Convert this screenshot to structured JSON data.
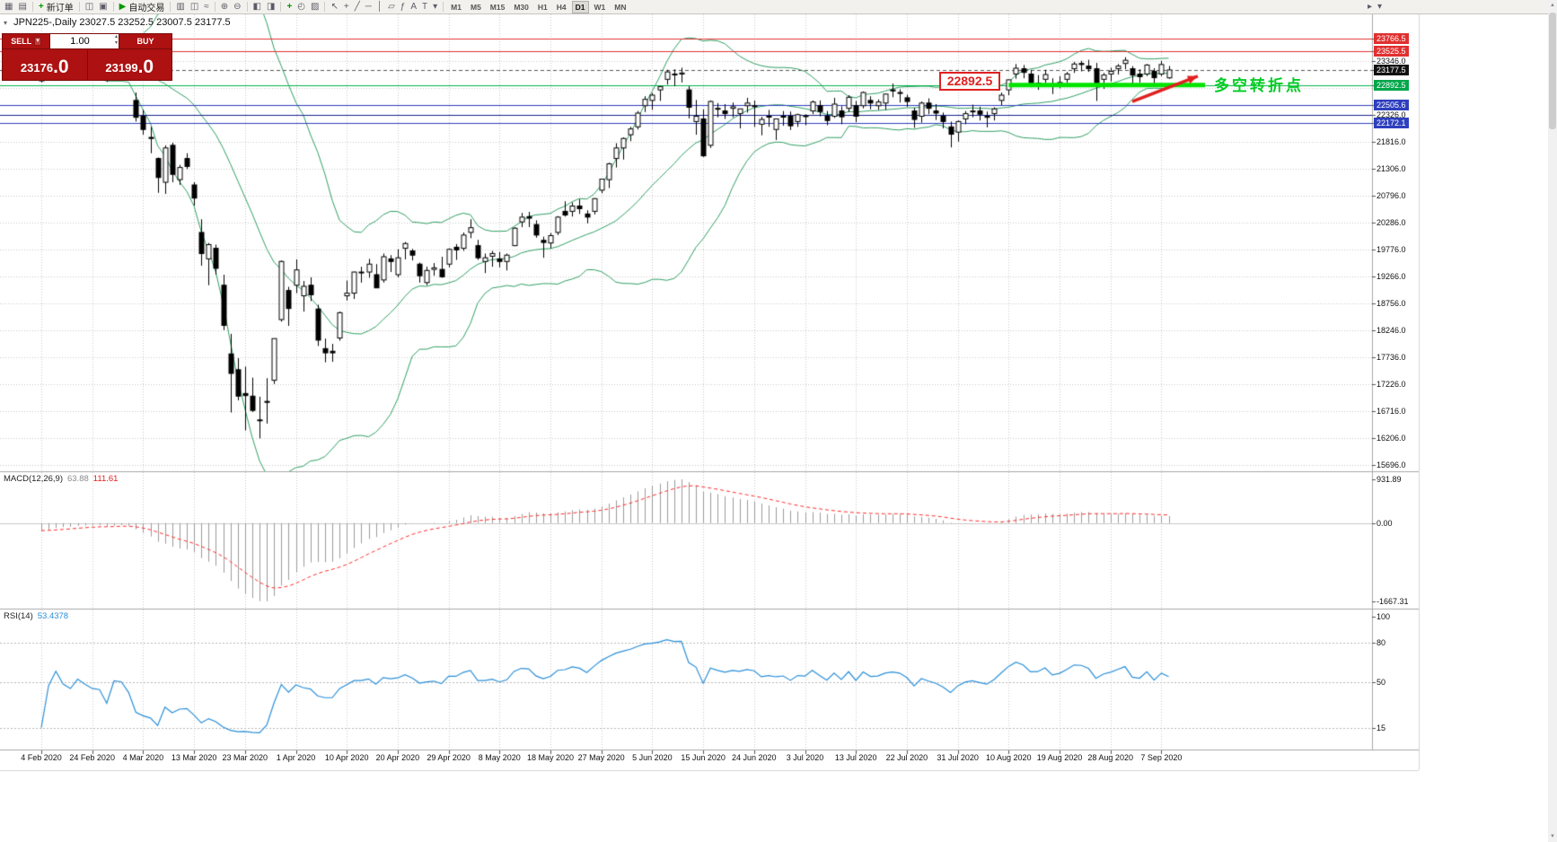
{
  "icons": {
    "caret_down": "▾",
    "caret_up": "▴",
    "collapse_arrow": "▾",
    "scroll_up": "▲",
    "scroll_down": "▼"
  },
  "toolbar": {
    "items": [
      {
        "name": "new-chart",
        "glyph": "▦"
      },
      {
        "name": "profiles",
        "glyph": "▤"
      },
      {
        "sep": true
      },
      {
        "name": "new-order",
        "glyph": "+",
        "color": "#009900",
        "bold": true,
        "label": "新订单"
      },
      {
        "sep": true
      },
      {
        "name": "market-watch",
        "glyph": "◫"
      },
      {
        "name": "navigator",
        "glyph": "▣"
      },
      {
        "sep": true
      },
      {
        "name": "auto-trading",
        "glyph": "▶",
        "color": "#009900",
        "label": "自动交易"
      },
      {
        "sep": true
      },
      {
        "name": "bar-chart",
        "glyph": "▥"
      },
      {
        "name": "candlestick-chart",
        "glyph": "◫"
      },
      {
        "name": "line-chart",
        "glyph": "≈"
      },
      {
        "sep": true
      },
      {
        "name": "zoom-in",
        "glyph": "⊕"
      },
      {
        "name": "zoom-out",
        "glyph": "⊖"
      },
      {
        "sep": true
      },
      {
        "name": "tile-windows",
        "glyph": "◧"
      },
      {
        "name": "cascade-windows",
        "glyph": "◨"
      },
      {
        "sep": true
      },
      {
        "name": "add-indicator",
        "glyph": "+",
        "color": "#009900",
        "bold": true
      },
      {
        "name": "periods",
        "glyph": "◴"
      },
      {
        "name": "templates",
        "glyph": "▨"
      },
      {
        "sep": true
      },
      {
        "name": "cursor",
        "glyph": "↖"
      },
      {
        "name": "crosshair",
        "glyph": "+"
      },
      {
        "name": "trendline",
        "glyph": "╱"
      },
      {
        "name": "horizontal-line",
        "glyph": "─"
      },
      {
        "name": "vertical-line",
        "glyph": "│"
      },
      {
        "name": "equidistant-channel",
        "glyph": "▱"
      },
      {
        "name": "fibonacci",
        "glyph": "ƒ"
      },
      {
        "name": "text-label",
        "glyph": "A"
      },
      {
        "name": "arrows-tool",
        "glyph": "T"
      },
      {
        "name": "shapes",
        "glyph": "▾"
      },
      {
        "sep": true
      }
    ],
    "timeframes": [
      "M1",
      "M5",
      "M15",
      "M30",
      "H1",
      "H4",
      "D1",
      "W1",
      "MN"
    ],
    "active_timeframe": "D1",
    "overflow_items": [
      {
        "name": "toolbar-more",
        "glyph": "▸"
      },
      {
        "name": "toolbar-customize",
        "glyph": "▾"
      }
    ]
  },
  "chart_header": {
    "symbol": "JPN225-",
    "period": "Daily",
    "open": "23027.5",
    "high": "23252.5",
    "low": "23007.5",
    "close": "23177.5",
    "info_line": "JPN225-,Daily  23027.5 23252.5 23007.5 23177.5"
  },
  "trade_panel": {
    "sell_label": "SELL",
    "buy_label": "BUY",
    "volume_value": "1.00",
    "sell_price_main": "23176",
    "sell_price_pips": ".0",
    "buy_price_main": "23199",
    "buy_price_pips": ".0"
  },
  "annotations": {
    "price_callout": "22892.5",
    "turning_point_label": "多空转折点"
  },
  "price_axis": {
    "gridline_labels": [
      "23346.0",
      "22326.0",
      "21816.0",
      "21306.0",
      "20796.0",
      "20286.0",
      "19776.0",
      "19266.0",
      "18756.0",
      "18246.0",
      "17736.0",
      "17226.0",
      "16716.0",
      "16206.0",
      "15696.0"
    ],
    "tags": [
      {
        "value": "23766.5",
        "type": "red"
      },
      {
        "value": "23525.5",
        "type": "red"
      },
      {
        "value": "23177.5",
        "type": "current"
      },
      {
        "value": "22892.5",
        "type": "green"
      },
      {
        "value": "22505.6",
        "type": "blue"
      },
      {
        "value": "22172.1",
        "type": "blue"
      }
    ]
  },
  "macd_panel": {
    "label": "MACD(12,26,9)",
    "value_main": "63.88",
    "value_signal": "111.61",
    "axis_labels": [
      "931.89",
      "0.00",
      "-1667.31"
    ]
  },
  "rsi_panel": {
    "label": "RSI(14)",
    "value": "53.4378",
    "levels": [
      "100",
      "80",
      "50",
      "15"
    ]
  },
  "date_axis": [
    "4 Feb 2020",
    "24 Feb 2020",
    "4 Mar 2020",
    "13 Mar 2020",
    "23 Mar 2020",
    "1 Apr 2020",
    "10 Apr 2020",
    "20 Apr 2020",
    "29 Apr 2020",
    "8 May 2020",
    "18 May 2020",
    "27 May 2020",
    "5 Jun 2020",
    "15 Jun 2020",
    "24 Jun 2020",
    "3 Jul 2020",
    "13 Jul 2020",
    "22 Jul 2020",
    "31 Jul 2020",
    "10 Aug 2020",
    "19 Aug 2020",
    "28 Aug 2020",
    "7 Sep 2020"
  ],
  "chart_data": {
    "type": "candlestick",
    "symbol": "JPN225-",
    "period": "Daily",
    "title": "JPN225- Daily with Bollinger Bands, MACD(12,26,9), RSI(14)",
    "y_axis": {
      "min": 15576,
      "max": 24230,
      "grid_step": 510
    },
    "macd_axis": {
      "max": 931.89,
      "min": -1667.31
    },
    "rsi_axis": {
      "max": 100,
      "min": 0,
      "level_values": [
        80,
        50,
        15
      ]
    },
    "indicators": {
      "bollinger": {
        "period": 20,
        "deviation": 2
      },
      "macd": {
        "fast": 12,
        "slow": 26,
        "signal": 9
      },
      "rsi": {
        "period": 14
      }
    },
    "horizontal_lines": [
      {
        "price": 23766.5,
        "color": "red"
      },
      {
        "price": 23525.5,
        "color": "red"
      },
      {
        "price": 23177.5,
        "color": "current"
      },
      {
        "price": 22892.5,
        "color": "green"
      },
      {
        "price": 22505.6,
        "color": "blue"
      },
      {
        "price": 22326.0,
        "color": "navy"
      },
      {
        "price": 22172.1,
        "color": "blue"
      }
    ],
    "support_segment": {
      "price": 22892.5,
      "x_start_index": 133,
      "x_end_index": 160
    },
    "trend_arrow": {
      "from_index": 150,
      "from_price": 22580,
      "to_index": 159,
      "to_price": 23060
    },
    "ohlc": [
      [
        22970,
        23090,
        22940,
        23080
      ],
      [
        23100,
        23390,
        23080,
        23370
      ],
      [
        23430,
        23590,
        23370,
        23560
      ],
      [
        23500,
        23550,
        23300,
        23390
      ],
      [
        23350,
        23430,
        23240,
        23320
      ],
      [
        23420,
        23480,
        23350,
        23460
      ],
      [
        23480,
        23520,
        23300,
        23380
      ],
      [
        23380,
        23420,
        23230,
        23310
      ],
      [
        23320,
        23420,
        23200,
        23290
      ],
      [
        23250,
        23280,
        22950,
        23000
      ],
      [
        23050,
        23420,
        23020,
        23400
      ],
      [
        23440,
        23520,
        23280,
        23380
      ],
      [
        23350,
        23390,
        23050,
        23120
      ],
      [
        22600,
        22750,
        22200,
        22280
      ],
      [
        22300,
        22420,
        21950,
        22050
      ],
      [
        21900,
        22100,
        21600,
        21880
      ],
      [
        21500,
        21520,
        20850,
        21140
      ],
      [
        21050,
        21750,
        20830,
        21700
      ],
      [
        21750,
        21800,
        21050,
        21200
      ],
      [
        21100,
        21380,
        21000,
        21330
      ],
      [
        21500,
        21600,
        21300,
        21350
      ],
      [
        21000,
        21050,
        20610,
        20750
      ],
      [
        20100,
        20350,
        19470,
        19700
      ],
      [
        19600,
        19900,
        19100,
        19870
      ],
      [
        19800,
        19870,
        19300,
        19420
      ],
      [
        19100,
        19300,
        18250,
        18340
      ],
      [
        17800,
        18180,
        16690,
        17430
      ],
      [
        17500,
        17720,
        16920,
        17000
      ],
      [
        17050,
        17560,
        16350,
        17010
      ],
      [
        17000,
        17350,
        16700,
        16730
      ],
      [
        16550,
        16990,
        16200,
        16550
      ],
      [
        16900,
        17340,
        16480,
        16890
      ],
      [
        17300,
        18090,
        17230,
        18090
      ],
      [
        18450,
        19570,
        18410,
        19550
      ],
      [
        19000,
        19070,
        18330,
        18660
      ],
      [
        19100,
        19590,
        18950,
        19390
      ],
      [
        18900,
        19180,
        18600,
        19080
      ],
      [
        19100,
        19250,
        18800,
        18920
      ],
      [
        18650,
        18730,
        17950,
        18060
      ],
      [
        17900,
        18090,
        17640,
        17820
      ],
      [
        17850,
        17990,
        17650,
        17820
      ],
      [
        18100,
        18600,
        18050,
        18580
      ],
      [
        18900,
        19190,
        18810,
        18950
      ],
      [
        18950,
        19360,
        18840,
        19350
      ],
      [
        19350,
        19450,
        19150,
        19350
      ],
      [
        19350,
        19600,
        19240,
        19500
      ],
      [
        19300,
        19500,
        19050,
        19050
      ],
      [
        19200,
        19700,
        19150,
        19640
      ],
      [
        19600,
        19670,
        19350,
        19550
      ],
      [
        19300,
        19780,
        19250,
        19620
      ],
      [
        19800,
        19920,
        19590,
        19890
      ],
      [
        19750,
        19790,
        19570,
        19670
      ],
      [
        19500,
        19530,
        19150,
        19280
      ],
      [
        19150,
        19450,
        19100,
        19380
      ],
      [
        19400,
        19520,
        19280,
        19430
      ],
      [
        19400,
        19640,
        19240,
        19260
      ],
      [
        19500,
        19800,
        19440,
        19780
      ],
      [
        19820,
        19880,
        19580,
        19770
      ],
      [
        19800,
        20100,
        19750,
        20050
      ],
      [
        20100,
        20350,
        19990,
        20190
      ],
      [
        19850,
        19960,
        19580,
        19620
      ],
      [
        19550,
        19700,
        19330,
        19620
      ],
      [
        19650,
        19750,
        19450,
        19700
      ],
      [
        19600,
        19730,
        19440,
        19550
      ],
      [
        19550,
        19700,
        19380,
        19670
      ],
      [
        19850,
        20200,
        19840,
        20180
      ],
      [
        20300,
        20470,
        20200,
        20390
      ],
      [
        20400,
        20490,
        20200,
        20370
      ],
      [
        20250,
        20330,
        20000,
        20050
      ],
      [
        19950,
        20020,
        19620,
        19910
      ],
      [
        19900,
        20090,
        19800,
        20040
      ],
      [
        20100,
        20410,
        20050,
        20390
      ],
      [
        20500,
        20690,
        20400,
        20430
      ],
      [
        20500,
        20670,
        20400,
        20600
      ],
      [
        20600,
        20730,
        20450,
        20550
      ],
      [
        20450,
        20520,
        20270,
        20390
      ],
      [
        20500,
        20750,
        20440,
        20740
      ],
      [
        20900,
        21110,
        20840,
        21110
      ],
      [
        21100,
        21420,
        20940,
        21400
      ],
      [
        21500,
        21790,
        21330,
        21700
      ],
      [
        21700,
        21900,
        21480,
        21880
      ],
      [
        21950,
        22100,
        21830,
        22060
      ],
      [
        22100,
        22400,
        22050,
        22360
      ],
      [
        22500,
        22680,
        22380,
        22620
      ],
      [
        22600,
        22740,
        22420,
        22700
      ],
      [
        22800,
        22870,
        22590,
        22860
      ],
      [
        23000,
        23180,
        22900,
        23140
      ],
      [
        23100,
        23190,
        22870,
        23090
      ],
      [
        23100,
        23220,
        22940,
        23120
      ],
      [
        22800,
        22870,
        22260,
        22470
      ],
      [
        22200,
        22610,
        21950,
        22300
      ],
      [
        22250,
        22430,
        21530,
        21550
      ],
      [
        21750,
        22600,
        21700,
        22580
      ],
      [
        22450,
        22550,
        22280,
        22450
      ],
      [
        22400,
        22530,
        22250,
        22350
      ],
      [
        22450,
        22560,
        22280,
        22480
      ],
      [
        22350,
        22440,
        22070,
        22440
      ],
      [
        22500,
        22650,
        22370,
        22550
      ],
      [
        22500,
        22600,
        22100,
        22500
      ],
      [
        22150,
        22290,
        21940,
        22240
      ],
      [
        22300,
        22420,
        22100,
        22300
      ],
      [
        22050,
        22250,
        21850,
        22250
      ],
      [
        22300,
        22400,
        22120,
        22290
      ],
      [
        22300,
        22390,
        22040,
        22120
      ],
      [
        22200,
        22350,
        22100,
        22330
      ],
      [
        22300,
        22340,
        22130,
        22310
      ],
      [
        22400,
        22600,
        22340,
        22570
      ],
      [
        22500,
        22600,
        22300,
        22390
      ],
      [
        22300,
        22400,
        22130,
        22220
      ],
      [
        22300,
        22650,
        22270,
        22530
      ],
      [
        22400,
        22490,
        22150,
        22290
      ],
      [
        22450,
        22700,
        22380,
        22660
      ],
      [
        22500,
        22590,
        22190,
        22300
      ],
      [
        22500,
        22770,
        22450,
        22750
      ],
      [
        22600,
        22680,
        22430,
        22550
      ],
      [
        22500,
        22620,
        22420,
        22570
      ],
      [
        22550,
        22730,
        22420,
        22720
      ],
      [
        22800,
        22920,
        22660,
        22780
      ],
      [
        22750,
        22810,
        22560,
        22740
      ],
      [
        22650,
        22710,
        22480,
        22580
      ],
      [
        22400,
        22460,
        22080,
        22240
      ],
      [
        22300,
        22580,
        22180,
        22550
      ],
      [
        22550,
        22640,
        22340,
        22450
      ],
      [
        22400,
        22530,
        22230,
        22360
      ],
      [
        22300,
        22370,
        22070,
        22200
      ],
      [
        22100,
        22200,
        21710,
        21960
      ],
      [
        22000,
        22220,
        21820,
        22200
      ],
      [
        22250,
        22400,
        22150,
        22350
      ],
      [
        22400,
        22520,
        22280,
        22400
      ],
      [
        22400,
        22480,
        22220,
        22340
      ],
      [
        22300,
        22390,
        22090,
        22280
      ],
      [
        22350,
        22470,
        22220,
        22440
      ],
      [
        22600,
        22750,
        22510,
        22700
      ],
      [
        22800,
        23000,
        22700,
        22990
      ],
      [
        23100,
        23290,
        23010,
        23210
      ],
      [
        23200,
        23270,
        23020,
        23130
      ],
      [
        23100,
        23180,
        22850,
        22920
      ],
      [
        22900,
        23080,
        22800,
        22930
      ],
      [
        23000,
        23180,
        22930,
        23090
      ],
      [
        22900,
        23020,
        22720,
        22880
      ],
      [
        22900,
        23060,
        22830,
        22940
      ],
      [
        23000,
        23140,
        22930,
        23100
      ],
      [
        23200,
        23330,
        23120,
        23290
      ],
      [
        23300,
        23350,
        23150,
        23280
      ],
      [
        23250,
        23370,
        23140,
        23200
      ],
      [
        23200,
        23310,
        22590,
        22930
      ],
      [
        23000,
        23120,
        22820,
        23080
      ],
      [
        23100,
        23220,
        22960,
        23150
      ],
      [
        23200,
        23290,
        23090,
        23250
      ],
      [
        23300,
        23420,
        23190,
        23360
      ],
      [
        23200,
        23250,
        22870,
        23080
      ],
      [
        23100,
        23190,
        22940,
        23050
      ],
      [
        23100,
        23290,
        23060,
        23270
      ],
      [
        23150,
        23210,
        22900,
        23030
      ],
      [
        23100,
        23350,
        23060,
        23280
      ],
      [
        23027.5,
        23252.5,
        23007.5,
        23177.5
      ]
    ]
  }
}
